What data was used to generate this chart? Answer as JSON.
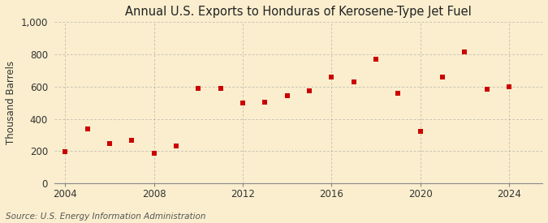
{
  "title": "Annual U.S. Exports to Honduras of Kerosene-Type Jet Fuel",
  "ylabel": "Thousand Barrels",
  "source": "Source: U.S. Energy Information Administration",
  "years": [
    2004,
    2005,
    2006,
    2007,
    2008,
    2009,
    2010,
    2011,
    2012,
    2013,
    2014,
    2015,
    2016,
    2017,
    2018,
    2019,
    2020,
    2021,
    2022,
    2023,
    2024
  ],
  "values": [
    195,
    340,
    245,
    265,
    185,
    230,
    590,
    590,
    500,
    505,
    545,
    575,
    660,
    630,
    770,
    560,
    320,
    660,
    815,
    585,
    600
  ],
  "marker_color": "#cc0000",
  "marker": "s",
  "marker_size": 4,
  "background_color": "#faeece",
  "grid_color": "#999999",
  "xlim": [
    2003.5,
    2025.5
  ],
  "ylim": [
    0,
    1000
  ],
  "xticks": [
    2004,
    2008,
    2012,
    2016,
    2020,
    2024
  ],
  "yticks": [
    0,
    200,
    400,
    600,
    800,
    1000
  ],
  "ytick_labels": [
    "0",
    "200",
    "400",
    "600",
    "800",
    "1,000"
  ],
  "title_fontsize": 10.5,
  "axis_fontsize": 8.5,
  "source_fontsize": 7.5
}
